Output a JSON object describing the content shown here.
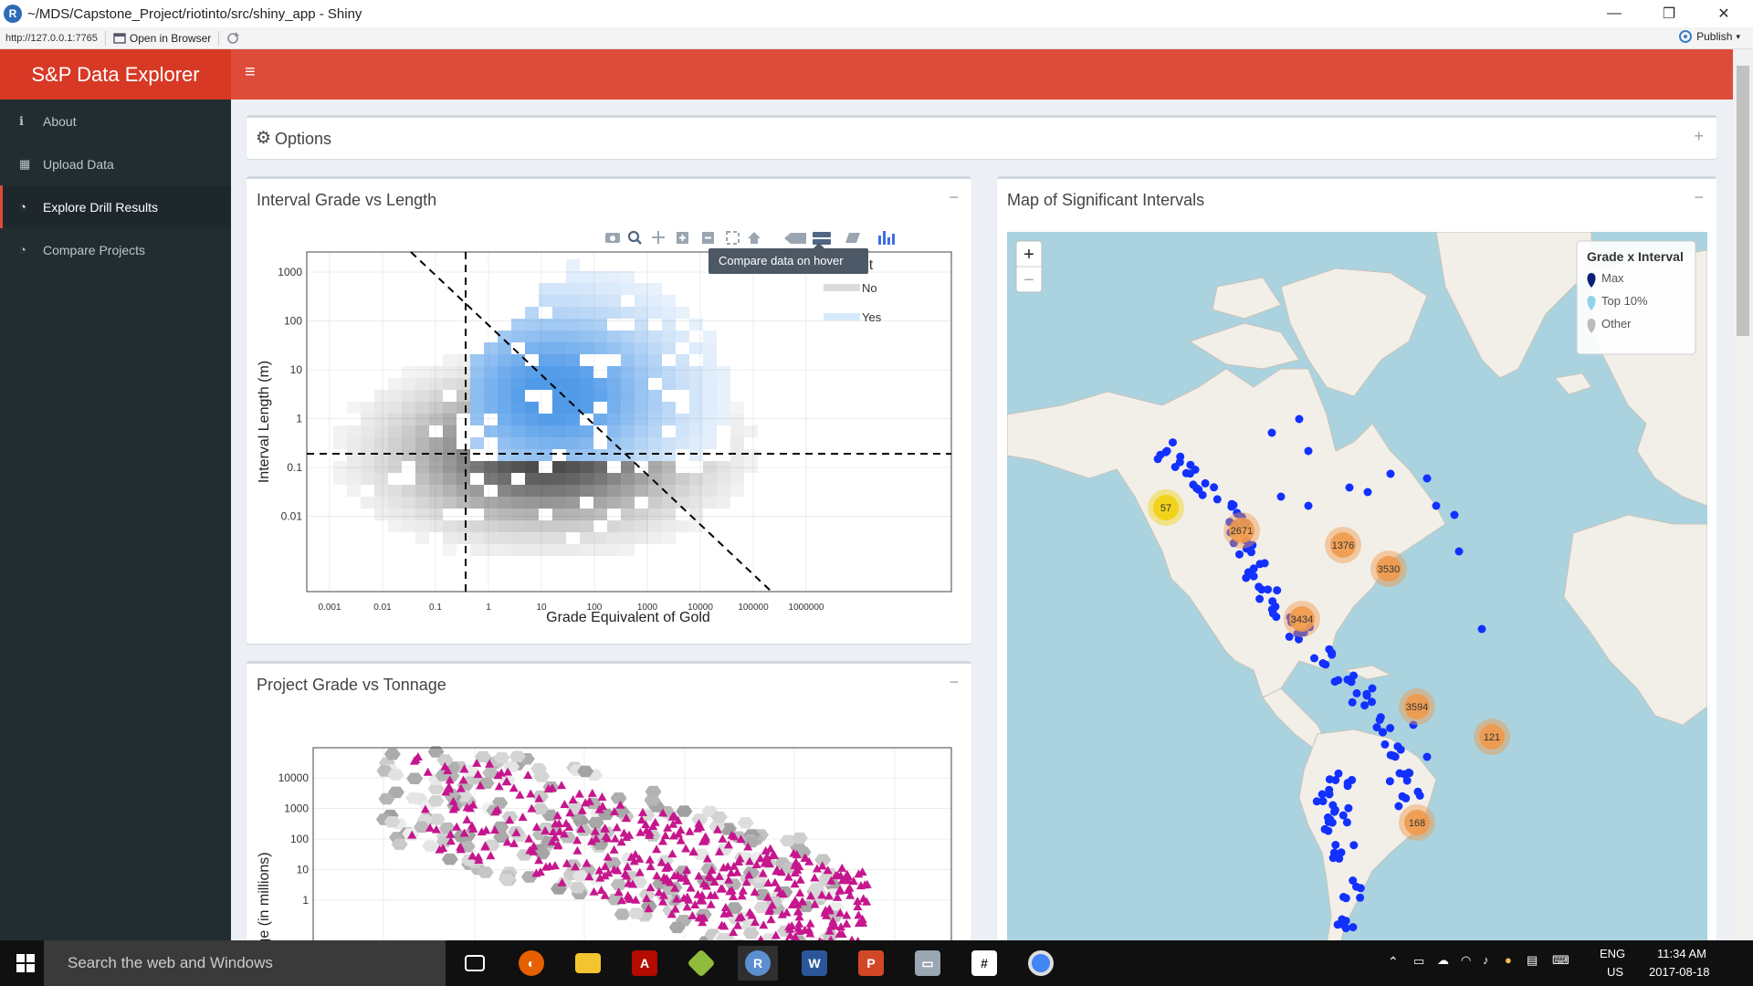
{
  "window": {
    "title": "~/MDS/Capstone_Project/riotinto/src/shiny_app - Shiny",
    "logo_letter": "R"
  },
  "viewer": {
    "url": "http://127.0.0.1:7765",
    "open_in_browser": "Open in Browser",
    "publish": "Publish"
  },
  "app": {
    "title": "S&P Data Explorer",
    "menu_icon": "≡",
    "accent_color": "#dd4b39",
    "sidebar": [
      {
        "label": "About",
        "icon": "info-icon",
        "glyph": "ℹ"
      },
      {
        "label": "Upload Data",
        "icon": "table-icon",
        "glyph": "▦"
      },
      {
        "label": "Explore Drill Results",
        "icon": "dashboard-icon",
        "glyph": "◔"
      },
      {
        "label": "Compare Projects",
        "icon": "dashboard-icon",
        "glyph": "◔"
      }
    ],
    "active_item": "Explore Drill Results"
  },
  "options_box": {
    "title": "Options",
    "icon": "gear-icon",
    "tool": "+"
  },
  "grade_length": {
    "title": "Interval Grade vs Length",
    "tool": "−",
    "tooltip": "Compare data on hover",
    "legend_title_fragment": "cant",
    "legend_items": [
      "No",
      "Yes"
    ],
    "xlabel": "Grade Equivalent of Gold",
    "ylabel": "Interval Length (m)",
    "x_ticks": [
      "0.001",
      "0.01",
      "0.1",
      "1",
      "10",
      "100",
      "1000",
      "10000",
      "100000",
      "1000000"
    ],
    "y_ticks": [
      "1000",
      "100",
      "10",
      "1",
      "0.1",
      "0.01"
    ]
  },
  "grade_tonnage": {
    "title": "Project Grade vs Tonnage",
    "tool": "−",
    "ylabel_fragment": "ge (in millions)",
    "y_ticks": [
      "10000",
      "1000",
      "100",
      "10",
      "1"
    ]
  },
  "map": {
    "title": "Map of Significant Intervals",
    "tool": "−",
    "zoom_in": "+",
    "zoom_out": "−",
    "legend_title": "Grade x Interval",
    "legend": [
      {
        "label": "Max",
        "color": "#0b1e7a"
      },
      {
        "label": "Top 10%",
        "color": "#8fd3e8"
      },
      {
        "label": "Other",
        "color": "#bbbbbb"
      }
    ],
    "clusters": [
      "57",
      "2671",
      "1376",
      "3530",
      "3434",
      "3594",
      "121",
      "168"
    ]
  },
  "taskbar": {
    "search": "Search the web and Windows",
    "lang_1": "ENG",
    "lang_2": "US",
    "time": "11:34 AM",
    "date": "2017-08-18"
  }
}
